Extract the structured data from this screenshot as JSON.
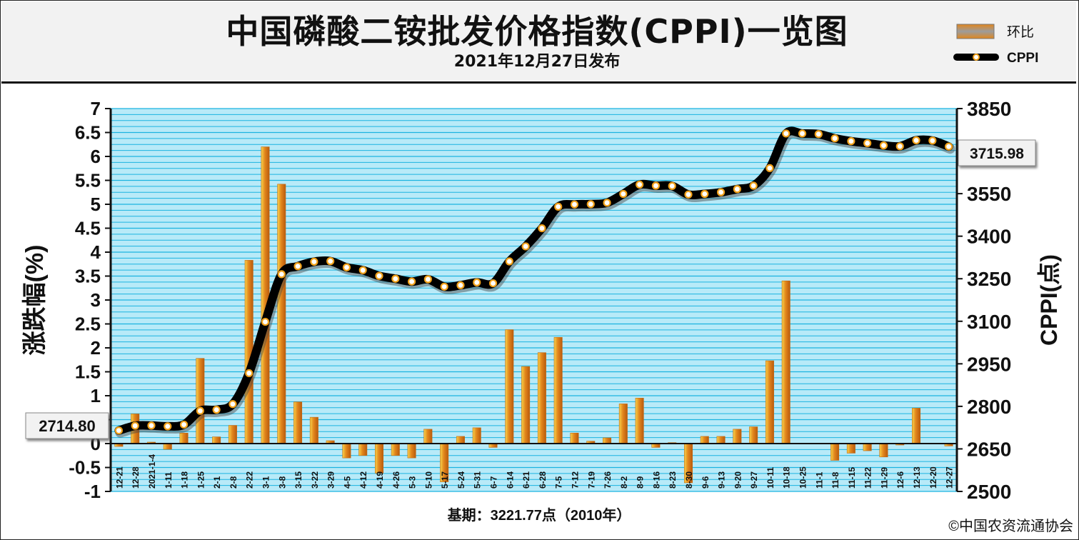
{
  "header": {
    "title": "中国磷酸二铵批发价格指数(CPPI)一览图",
    "subtitle": "2021年12月27日发布"
  },
  "legend": {
    "bar_label": "环比",
    "line_label": "CPPI"
  },
  "footer": {
    "base_period": "基期：3221.77点（2010年）",
    "copyright": "©中国农资流通协会"
  },
  "callouts": {
    "start_value": "2714.80",
    "end_value": "3715.98"
  },
  "colors": {
    "plot_background": "#b8eaf8",
    "gridline": "#1bb3e0",
    "bar_fill": "#e08c1a",
    "line": "#000000",
    "marker": "#f2a21a"
  },
  "chart_data": {
    "type": "bar+line",
    "categories": [
      "12-21",
      "12-28",
      "2021-1-4",
      "1-11",
      "1-18",
      "1-25",
      "2-1",
      "2-8",
      "2-22",
      "3-1",
      "3-8",
      "3-15",
      "3-22",
      "3-29",
      "4-5",
      "4-12",
      "4-19",
      "4-26",
      "5-3",
      "5-10",
      "5-17",
      "5-24",
      "5-31",
      "6-7",
      "6-14",
      "6-21",
      "6-28",
      "7-5",
      "7-12",
      "7-19",
      "7-26",
      "8-2",
      "8-9",
      "8-16",
      "8-23",
      "8-30",
      "9-6",
      "9-13",
      "9-20",
      "9-27",
      "10-11",
      "10-18",
      "10-25",
      "11-1",
      "11-8",
      "11-15",
      "11-22",
      "11-29",
      "12-6",
      "12-13",
      "12-20",
      "12-27"
    ],
    "series": [
      {
        "name": "环比",
        "axis": "left",
        "values": [
          -0.06,
          0.62,
          0.03,
          -0.12,
          0.22,
          1.78,
          0.14,
          0.38,
          3.83,
          6.2,
          5.42,
          0.87,
          0.55,
          0.06,
          -0.3,
          -0.25,
          -0.62,
          -0.25,
          -0.3,
          0.3,
          -0.8,
          0.15,
          0.33,
          -0.08,
          2.38,
          1.61,
          1.9,
          2.22,
          0.22,
          0.05,
          0.12,
          0.83,
          0.95,
          -0.08,
          0.02,
          -0.82,
          0.15,
          0.15,
          0.3,
          0.35,
          1.73,
          3.4,
          0.0,
          0.0,
          -0.35,
          -0.2,
          -0.15,
          -0.28,
          -0.03,
          0.74,
          0.0,
          -0.05
        ]
      },
      {
        "name": "CPPI",
        "axis": "right",
        "values": [
          2714.8,
          2731.6,
          2732.4,
          2729.5,
          2735.6,
          2784.2,
          2788.0,
          2808.0,
          2917.0,
          3098.0,
          3266.0,
          3294.0,
          3310.0,
          3312.0,
          3290.0,
          3280.0,
          3260.0,
          3250.0,
          3240.0,
          3248.0,
          3222.0,
          3227.0,
          3237.0,
          3234.0,
          3311.0,
          3364.0,
          3428.0,
          3504.0,
          3512.0,
          3513.0,
          3518.0,
          3549.0,
          3582.0,
          3578.0,
          3577.0,
          3547.0,
          3549.0,
          3555.0,
          3566.0,
          3578.0,
          3640.0,
          3762.0,
          3762.0,
          3760.0,
          3745.0,
          3735.0,
          3728.0,
          3720.0,
          3717.0,
          3738.0,
          3737.0,
          3715.98
        ]
      }
    ],
    "y_left": {
      "label": "涨跌幅(%)",
      "min": -1,
      "max": 7,
      "ticks": [
        "-1",
        "-0.5",
        "0",
        "0.5",
        "1",
        "1.5",
        "2",
        "2.5",
        "3",
        "3.5",
        "4",
        "4.5",
        "5",
        "5.5",
        "6",
        "6.5",
        "7"
      ]
    },
    "y_right": {
      "label": "CPPI(点)",
      "min": 2500,
      "max": 3850,
      "ticks": [
        "2500",
        "2650",
        "2800",
        "2950",
        "3100",
        "3250",
        "3400",
        "3550",
        "3700",
        "3850"
      ]
    },
    "grid": true,
    "legend_position": "top-right"
  }
}
